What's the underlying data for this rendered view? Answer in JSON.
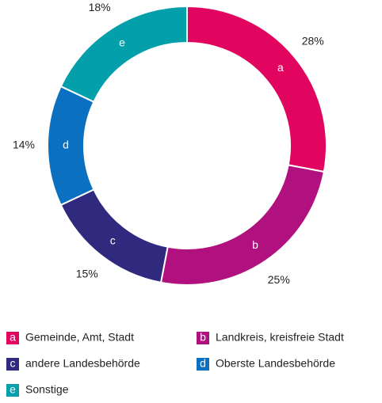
{
  "chart_data": {
    "type": "donut",
    "categories": [
      "Gemeinde, Amt, Stadt",
      "Landkreis, kreisfreie Stadt",
      "andere Landesbehörde",
      "Oberste Landesbehörde",
      "Sonstige"
    ],
    "keys": [
      "a",
      "b",
      "c",
      "d",
      "e"
    ],
    "values": [
      28,
      25,
      15,
      14,
      18
    ],
    "value_labels": [
      "28%",
      "25%",
      "15%",
      "14%",
      "18%"
    ],
    "colors": [
      "#e2055f",
      "#b1107f",
      "#2f2a7e",
      "#0a70bf",
      "#03a0ac"
    ]
  }
}
